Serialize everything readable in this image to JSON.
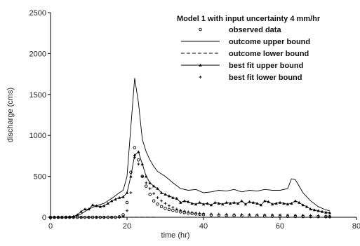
{
  "chart_data": {
    "type": "line",
    "title": "Model 1 with input uncertainty 4 mm/hr",
    "xlabel": "time (hr)",
    "ylabel": "discharge (cms)",
    "xlim": [
      0,
      80
    ],
    "ylim": [
      0,
      2500
    ],
    "xticks": [
      "0",
      "20",
      "40",
      "60",
      "80"
    ],
    "yticks": [
      "0",
      "500",
      "1000",
      "1500",
      "2000",
      "2500"
    ],
    "grid": false,
    "legend_position": "top-right",
    "series": [
      {
        "name": "observed data",
        "style": "circle-markers",
        "x": [
          0,
          1,
          2,
          3,
          4,
          5,
          6,
          7,
          8,
          9,
          10,
          11,
          12,
          13,
          14,
          15,
          16,
          17,
          18,
          19,
          20,
          21,
          22,
          23,
          24,
          25,
          26,
          27,
          28,
          29,
          30,
          31,
          32,
          33,
          34,
          35,
          36,
          37,
          38,
          39,
          40,
          42,
          44,
          46,
          48,
          50,
          52,
          54,
          56,
          58,
          60,
          62,
          64,
          66,
          68,
          70,
          72,
          73
        ],
        "y": [
          0,
          0,
          0,
          0,
          0,
          0,
          0,
          0,
          0,
          0,
          0,
          0,
          0,
          0,
          0,
          0,
          0,
          0,
          5,
          30,
          180,
          550,
          850,
          700,
          500,
          380,
          280,
          200,
          160,
          130,
          110,
          95,
          85,
          75,
          65,
          58,
          52,
          46,
          40,
          36,
          32,
          28,
          25,
          22,
          20,
          18,
          16,
          14,
          13,
          12,
          11,
          10,
          9,
          8,
          8,
          7,
          6,
          6
        ]
      },
      {
        "name": "outcome upper bound",
        "style": "solid",
        "x": [
          0,
          4,
          6,
          8,
          10,
          12,
          14,
          16,
          18,
          19,
          20,
          21,
          22,
          23,
          24,
          25,
          26,
          27,
          28,
          30,
          32,
          34,
          36,
          38,
          40,
          42,
          44,
          46,
          48,
          50,
          52,
          54,
          56,
          58,
          60,
          62,
          63,
          64,
          65,
          66,
          68,
          70,
          72,
          73
        ],
        "y": [
          0,
          0,
          10,
          40,
          100,
          140,
          170,
          230,
          300,
          330,
          500,
          1100,
          1700,
          1400,
          950,
          800,
          700,
          620,
          560,
          500,
          420,
          350,
          330,
          340,
          300,
          310,
          330,
          320,
          340,
          310,
          330,
          320,
          340,
          330,
          330,
          350,
          470,
          460,
          380,
          300,
          200,
          130,
          90,
          80
        ]
      },
      {
        "name": "outcome lower bound",
        "style": "dashed",
        "x": [
          0,
          10,
          20,
          22,
          24,
          26,
          28,
          30,
          35,
          40,
          50,
          60,
          70,
          73
        ],
        "y": [
          0,
          0,
          0,
          2,
          2,
          2,
          1,
          1,
          1,
          0,
          0,
          0,
          0,
          0
        ]
      },
      {
        "name": "best fit upper bound",
        "style": "line-triangle",
        "x": [
          0,
          1,
          2,
          3,
          4,
          5,
          6,
          7,
          8,
          9,
          10,
          11,
          12,
          13,
          14,
          15,
          16,
          17,
          18,
          19,
          20,
          21,
          22,
          23,
          24,
          25,
          26,
          27,
          28,
          29,
          30,
          31,
          32,
          33,
          34,
          35,
          36,
          37,
          38,
          39,
          40,
          41,
          42,
          43,
          44,
          45,
          46,
          47,
          48,
          49,
          50,
          51,
          52,
          53,
          54,
          55,
          56,
          57,
          58,
          59,
          60,
          61,
          62,
          63,
          64,
          65,
          66,
          67,
          68,
          69,
          70,
          71,
          72,
          73
        ],
        "y": [
          0,
          0,
          0,
          0,
          0,
          5,
          10,
          30,
          70,
          100,
          100,
          150,
          140,
          130,
          140,
          170,
          200,
          220,
          240,
          250,
          300,
          500,
          760,
          800,
          650,
          500,
          420,
          380,
          350,
          300,
          280,
          260,
          240,
          230,
          180,
          200,
          190,
          170,
          160,
          180,
          160,
          170,
          150,
          180,
          170,
          160,
          180,
          170,
          180,
          170,
          200,
          160,
          190,
          180,
          170,
          150,
          200,
          190,
          160,
          170,
          180,
          170,
          160,
          170,
          200,
          180,
          150,
          130,
          100,
          90,
          80,
          70,
          60,
          55
        ]
      },
      {
        "name": "best fit lower bound",
        "style": "plus-markers",
        "x": [
          0,
          2,
          4,
          6,
          8,
          10,
          12,
          14,
          16,
          18,
          19,
          20,
          21,
          22,
          23,
          24,
          25,
          26,
          27,
          28,
          29,
          30,
          31,
          32,
          33,
          34,
          35,
          36,
          37,
          38,
          39,
          40,
          42,
          44,
          46,
          48,
          50,
          52,
          54,
          56,
          58,
          60,
          62,
          64,
          66,
          68,
          70,
          72,
          73
        ],
        "y": [
          0,
          0,
          0,
          0,
          0,
          0,
          0,
          0,
          0,
          0,
          10,
          80,
          300,
          730,
          650,
          500,
          420,
          350,
          290,
          240,
          200,
          170,
          140,
          120,
          100,
          85,
          75,
          65,
          58,
          52,
          48,
          45,
          40,
          38,
          36,
          35,
          33,
          32,
          30,
          30,
          29,
          28,
          27,
          26,
          25,
          22,
          20,
          18,
          15
        ]
      }
    ]
  }
}
